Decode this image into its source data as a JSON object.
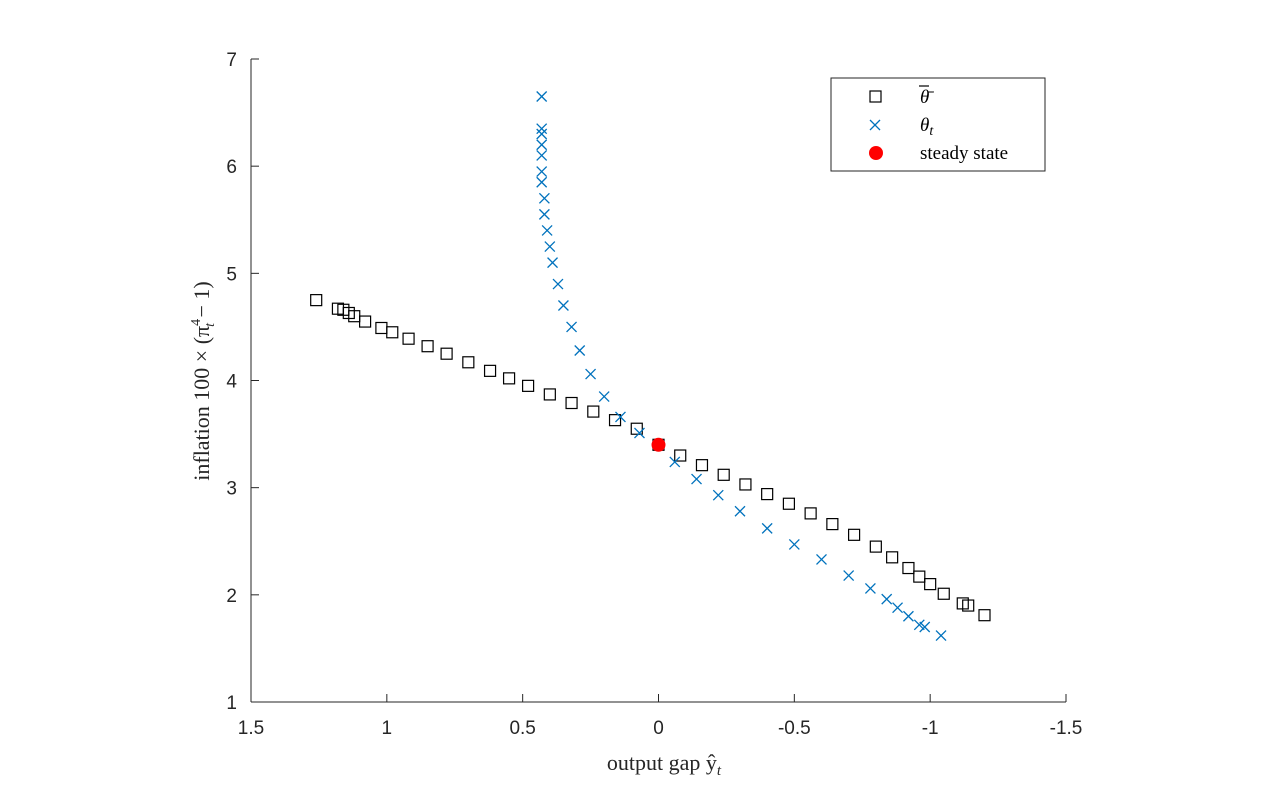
{
  "chart_data": {
    "type": "scatter",
    "title": "",
    "xlabel": "output gap ŷ",
    "xlabel_sub": "t",
    "ylabel": "inflation 100 × (π",
    "ylabel_sup": "4",
    "ylabel_sub": "t",
    "ylabel_tail": " − 1)",
    "xlim": [
      1.5,
      -1.5
    ],
    "x_reversed": true,
    "ylim": [
      1,
      7
    ],
    "xticks": [
      1.5,
      1,
      0.5,
      0,
      -0.5,
      -1,
      -1.5
    ],
    "xtick_labels": [
      "1.5",
      "1",
      "0.5",
      "0",
      "-0.5",
      "-1",
      "-1.5"
    ],
    "yticks": [
      1,
      2,
      3,
      4,
      5,
      6,
      7
    ],
    "ytick_labels": [
      "1",
      "2",
      "3",
      "4",
      "5",
      "6",
      "7"
    ],
    "grid": false,
    "legend_position": "top-right",
    "series": [
      {
        "name": "θ̄",
        "marker": "square",
        "color": "#000000",
        "x": [
          1.26,
          1.18,
          1.16,
          1.14,
          1.12,
          1.08,
          1.02,
          0.98,
          0.92,
          0.85,
          0.78,
          0.7,
          0.62,
          0.55,
          0.48,
          0.4,
          0.32,
          0.24,
          0.16,
          0.08,
          0.0,
          -0.08,
          -0.16,
          -0.24,
          -0.32,
          -0.4,
          -0.48,
          -0.56,
          -0.64,
          -0.72,
          -0.8,
          -0.86,
          -0.92,
          -0.96,
          -1.0,
          -1.05,
          -1.12,
          -1.14,
          -1.2
        ],
        "y": [
          4.75,
          4.67,
          4.66,
          4.63,
          4.6,
          4.55,
          4.49,
          4.45,
          4.39,
          4.32,
          4.25,
          4.17,
          4.09,
          4.02,
          3.95,
          3.87,
          3.79,
          3.71,
          3.63,
          3.55,
          3.4,
          3.3,
          3.21,
          3.12,
          3.03,
          2.94,
          2.85,
          2.76,
          2.66,
          2.56,
          2.45,
          2.35,
          2.25,
          2.17,
          2.1,
          2.01,
          1.92,
          1.9,
          1.81
        ]
      },
      {
        "name": "θ",
        "name_sub": "t",
        "marker": "x",
        "color": "#0072BD",
        "x": [
          0.43,
          0.43,
          0.43,
          0.43,
          0.43,
          0.43,
          0.43,
          0.42,
          0.42,
          0.41,
          0.4,
          0.39,
          0.37,
          0.35,
          0.32,
          0.29,
          0.25,
          0.2,
          0.14,
          0.07,
          0.0,
          -0.06,
          -0.14,
          -0.22,
          -0.3,
          -0.4,
          -0.5,
          -0.6,
          -0.7,
          -0.78,
          -0.84,
          -0.88,
          -0.92,
          -0.96,
          -0.98,
          -1.04
        ],
        "y": [
          6.65,
          6.35,
          6.3,
          6.2,
          6.1,
          5.95,
          5.85,
          5.7,
          5.55,
          5.4,
          5.25,
          5.1,
          4.9,
          4.7,
          4.5,
          4.28,
          4.06,
          3.85,
          3.66,
          3.51,
          3.4,
          3.24,
          3.08,
          2.93,
          2.78,
          2.62,
          2.47,
          2.33,
          2.18,
          2.06,
          1.96,
          1.88,
          1.8,
          1.72,
          1.7,
          1.62
        ]
      },
      {
        "name": "steady state",
        "marker": "dot",
        "color": "#ff0000",
        "x": [
          0.0
        ],
        "y": [
          3.4
        ]
      }
    ],
    "legend": [
      {
        "label": "θ̄",
        "marker": "square",
        "color": "#000000"
      },
      {
        "label": "θ",
        "label_sub": "t",
        "marker": "x",
        "color": "#0072BD"
      },
      {
        "label": "steady state",
        "marker": "dot",
        "color": "#ff0000"
      }
    ]
  }
}
